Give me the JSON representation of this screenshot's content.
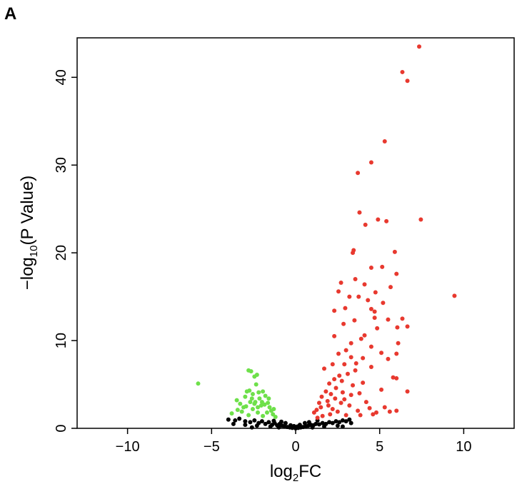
{
  "panel_label": "A",
  "chart_data": {
    "type": "scatter",
    "title": "",
    "xlabel": {
      "pre": "log",
      "sub": "2",
      "post": "FC"
    },
    "ylabel": {
      "pre": "−log",
      "sub": "10",
      "post": "(P Value)"
    },
    "xlim": [
      -13,
      13
    ],
    "ylim": [
      0,
      44.5
    ],
    "xticks": [
      -10,
      -5,
      0,
      5,
      10
    ],
    "xtick_labels": [
      "−10",
      "−5",
      "0",
      "5",
      "10"
    ],
    "yticks": [
      0,
      10,
      20,
      30,
      40
    ],
    "ytick_labels": [
      "0",
      "10",
      "20",
      "30",
      "40"
    ],
    "grid": false,
    "legend": "none",
    "colors": {
      "up": "#e8392f",
      "down": "#6ee04a",
      "ns": "#000000"
    },
    "series": [
      {
        "group": "up",
        "points": [
          [
            7.35,
            43.5
          ],
          [
            6.35,
            40.6
          ],
          [
            6.65,
            39.6
          ],
          [
            5.3,
            32.7
          ],
          [
            4.5,
            30.3
          ],
          [
            3.7,
            29.1
          ],
          [
            3.8,
            24.6
          ],
          [
            4.9,
            23.8
          ],
          [
            5.4,
            23.6
          ],
          [
            4.15,
            23.2
          ],
          [
            7.45,
            23.8
          ],
          [
            3.45,
            20.3
          ],
          [
            5.9,
            20.1
          ],
          [
            3.4,
            20.0
          ],
          [
            9.45,
            15.1
          ],
          [
            3.55,
            17.0
          ],
          [
            6.0,
            17.6
          ],
          [
            5.15,
            18.4
          ],
          [
            4.5,
            18.3
          ],
          [
            5.65,
            16.1
          ],
          [
            4.1,
            16.4
          ],
          [
            4.75,
            15.5
          ],
          [
            2.7,
            16.6
          ],
          [
            2.55,
            15.6
          ],
          [
            3.2,
            15.0
          ],
          [
            3.75,
            15.0
          ],
          [
            4.3,
            14.6
          ],
          [
            5.2,
            14.3
          ],
          [
            2.95,
            13.7
          ],
          [
            4.5,
            13.6
          ],
          [
            4.7,
            13.3
          ],
          [
            2.3,
            13.4
          ],
          [
            3.5,
            12.3
          ],
          [
            6.35,
            12.5
          ],
          [
            4.7,
            12.6
          ],
          [
            5.5,
            12.4
          ],
          [
            6.05,
            11.5
          ],
          [
            6.65,
            11.6
          ],
          [
            2.85,
            11.9
          ],
          [
            4.85,
            11.4
          ],
          [
            4.1,
            10.6
          ],
          [
            3.9,
            10.2
          ],
          [
            2.3,
            10.5
          ],
          [
            3.3,
            9.7
          ],
          [
            4.5,
            9.3
          ],
          [
            6.1,
            9.7
          ],
          [
            5.1,
            8.6
          ],
          [
            3.0,
            8.9
          ],
          [
            2.55,
            8.5
          ],
          [
            4.0,
            8.0
          ],
          [
            5.5,
            7.9
          ],
          [
            6.0,
            8.5
          ],
          [
            3.6,
            7.4
          ],
          [
            2.2,
            7.3
          ],
          [
            4.5,
            7.0
          ],
          [
            5.8,
            5.8
          ],
          [
            6.0,
            5.7
          ],
          [
            6.65,
            4.2
          ],
          [
            5.1,
            4.4
          ],
          [
            3.8,
            4.0
          ],
          [
            2.75,
            5.4
          ],
          [
            5.3,
            2.4
          ],
          [
            4.2,
            3.0
          ],
          [
            4.8,
            1.8
          ],
          [
            3.2,
            2.6
          ],
          [
            1.3,
            1.2
          ],
          [
            1.1,
            1.8
          ],
          [
            1.5,
            2.4
          ],
          [
            1.9,
            3.1
          ],
          [
            2.1,
            3.9
          ],
          [
            2.4,
            4.6
          ],
          [
            2.0,
            5.1
          ],
          [
            2.6,
            6.0
          ],
          [
            3.1,
            6.2
          ],
          [
            1.7,
            6.8
          ],
          [
            2.9,
            3.3
          ],
          [
            3.4,
            4.9
          ],
          [
            3.0,
            1.5
          ],
          [
            2.2,
            2.2
          ],
          [
            1.6,
            1.4
          ],
          [
            2.5,
            1.9
          ],
          [
            3.7,
            2.0
          ],
          [
            4.4,
            2.3
          ],
          [
            3.3,
            3.8
          ],
          [
            1.8,
            4.2
          ],
          [
            2.3,
            5.6
          ],
          [
            2.8,
            4.1
          ],
          [
            1.4,
            2.9
          ],
          [
            4.0,
            5.2
          ],
          [
            3.55,
            6.6
          ],
          [
            2.05,
            1.6
          ],
          [
            2.7,
            2.9
          ],
          [
            1.95,
            2.6
          ],
          [
            1.25,
            2.1
          ],
          [
            3.85,
            1.5
          ],
          [
            4.6,
            1.6
          ],
          [
            2.35,
            3.4
          ],
          [
            2.9,
            7.3
          ],
          [
            3.3,
            8.1
          ],
          [
            1.55,
            3.6
          ],
          [
            5.6,
            1.9
          ],
          [
            6.0,
            2.0
          ]
        ]
      },
      {
        "group": "down",
        "points": [
          [
            -5.8,
            5.1
          ],
          [
            -3.8,
            1.7
          ],
          [
            -3.45,
            2.1
          ],
          [
            -3.2,
            1.9
          ],
          [
            -3.5,
            3.2
          ],
          [
            -3.3,
            2.8
          ],
          [
            -2.95,
            2.5
          ],
          [
            -2.8,
            6.6
          ],
          [
            -2.65,
            6.5
          ],
          [
            -2.45,
            5.9
          ],
          [
            -2.3,
            6.1
          ],
          [
            -2.75,
            4.3
          ],
          [
            -2.55,
            3.9
          ],
          [
            -2.35,
            5.0
          ],
          [
            -2.2,
            4.1
          ],
          [
            -3.0,
            3.6
          ],
          [
            -2.9,
            4.2
          ],
          [
            -2.6,
            3.4
          ],
          [
            -2.4,
            3.0
          ],
          [
            -2.15,
            3.4
          ],
          [
            -1.95,
            4.2
          ],
          [
            -1.8,
            3.7
          ],
          [
            -2.05,
            2.6
          ],
          [
            -1.85,
            2.7
          ],
          [
            -1.65,
            2.9
          ],
          [
            -1.55,
            2.4
          ],
          [
            -1.45,
            2.0
          ],
          [
            -1.35,
            1.6
          ],
          [
            -1.7,
            1.8
          ],
          [
            -1.95,
            1.4
          ],
          [
            -2.25,
            1.8
          ],
          [
            -2.55,
            2.2
          ],
          [
            -2.8,
            1.5
          ],
          [
            -3.1,
            2.4
          ],
          [
            -1.2,
            1.3
          ],
          [
            -1.3,
            2.2
          ],
          [
            -1.6,
            3.4
          ],
          [
            -2.0,
            3.0
          ],
          [
            -2.25,
            2.4
          ],
          [
            -2.45,
            2.8
          ],
          [
            -2.7,
            3.0
          ]
        ]
      },
      {
        "group": "ns",
        "points": [
          [
            -4.0,
            1.0
          ],
          [
            -3.6,
            0.9
          ],
          [
            -3.35,
            1.1
          ],
          [
            -3.0,
            0.8
          ],
          [
            -2.7,
            0.7
          ],
          [
            -2.45,
            0.9
          ],
          [
            -2.2,
            0.6
          ],
          [
            -2.0,
            0.8
          ],
          [
            -1.8,
            0.5
          ],
          [
            -1.6,
            0.7
          ],
          [
            -1.4,
            0.4
          ],
          [
            -1.25,
            0.6
          ],
          [
            -1.1,
            0.35
          ],
          [
            -0.95,
            0.5
          ],
          [
            -0.8,
            0.3
          ],
          [
            -0.65,
            0.2
          ],
          [
            -0.5,
            0.15
          ],
          [
            -0.35,
            0.1
          ],
          [
            -0.2,
            0.05
          ],
          [
            0.0,
            0.0
          ],
          [
            0.15,
            0.05
          ],
          [
            0.3,
            0.1
          ],
          [
            0.45,
            0.15
          ],
          [
            0.6,
            0.2
          ],
          [
            0.75,
            0.3
          ],
          [
            0.9,
            0.4
          ],
          [
            1.05,
            0.35
          ],
          [
            1.2,
            0.5
          ],
          [
            1.4,
            0.45
          ],
          [
            1.6,
            0.6
          ],
          [
            1.8,
            0.5
          ],
          [
            2.0,
            0.7
          ],
          [
            2.2,
            0.6
          ],
          [
            2.4,
            0.8
          ],
          [
            2.6,
            0.7
          ],
          [
            2.8,
            0.9
          ],
          [
            3.0,
            0.8
          ],
          [
            3.2,
            1.0
          ],
          [
            -1.5,
            0.2
          ],
          [
            -2.3,
            0.3
          ],
          [
            -3.0,
            0.4
          ],
          [
            1.7,
            0.2
          ],
          [
            2.5,
            0.3
          ],
          [
            0.55,
            0.6
          ],
          [
            -0.6,
            0.6
          ],
          [
            -0.3,
            0.35
          ],
          [
            0.25,
            0.4
          ],
          [
            -1.0,
            0.1
          ],
          [
            1.0,
            0.1
          ],
          [
            -2.6,
            0.1
          ],
          [
            2.8,
            0.2
          ],
          [
            0.1,
            0.2
          ],
          [
            -0.1,
            0.25
          ],
          [
            3.3,
            0.6
          ],
          [
            -3.7,
            0.5
          ],
          [
            1.3,
            0.9
          ],
          [
            -1.3,
            0.85
          ],
          [
            0.8,
            0.7
          ],
          [
            -0.85,
            0.75
          ]
        ]
      }
    ]
  }
}
